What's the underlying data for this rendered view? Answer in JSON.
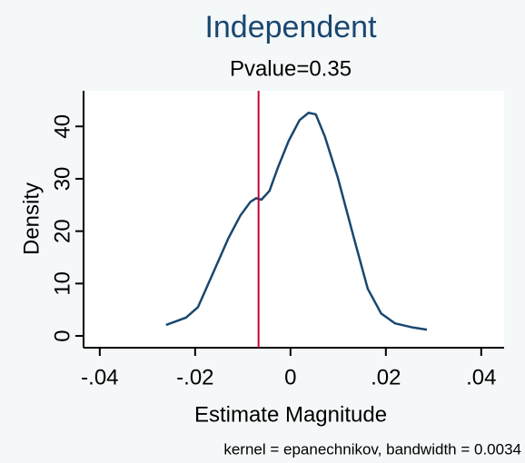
{
  "chart_data": {
    "type": "line",
    "title": "Independent",
    "subtitle": "Pvalue=0.35",
    "xlabel": "Estimate Magnitude",
    "ylabel": "Density",
    "note": "kernel = epanechnikov, bandwidth = 0.0034",
    "x": [
      -0.0261,
      -0.0219,
      -0.0194,
      -0.0162,
      -0.013,
      -0.0105,
      -0.0084,
      -0.0072,
      -0.0061,
      -0.0044,
      -0.0027,
      -0.0004,
      0.0019,
      0.0038,
      0.0053,
      0.0072,
      0.0099,
      0.0133,
      0.0162,
      0.019,
      0.0219,
      0.0257,
      0.0286
    ],
    "values": [
      2.1,
      3.5,
      5.5,
      12.1,
      18.7,
      23.0,
      25.6,
      26.3,
      26.0,
      27.7,
      32.0,
      37.2,
      41.2,
      42.6,
      42.3,
      38.1,
      30.3,
      18.7,
      9.0,
      4.3,
      2.4,
      1.6,
      1.2
    ],
    "color": "#1a476f",
    "reference_line": {
      "value": -0.0067,
      "color": "#c10534"
    },
    "xlim": [
      -0.0434,
      0.0448
    ],
    "xticks": [
      {
        "value": -0.04,
        "label": "-.04"
      },
      {
        "value": -0.02,
        "label": "-.02"
      },
      0,
      {
        "value": 0.02,
        "label": ".02"
      },
      {
        "value": 0.04,
        "label": ".04"
      }
    ],
    "ylim": [
      -2.25,
      46.8
    ],
    "yticks": [
      0,
      10,
      20,
      30,
      40
    ]
  }
}
